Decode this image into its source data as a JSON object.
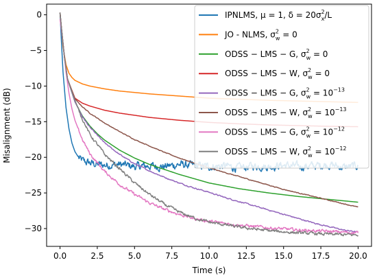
{
  "chart_data": {
    "type": "line",
    "xlabel": "Time (s)",
    "ylabel": "Misalignment (dB)",
    "xlim": [
      -0.9,
      20.9
    ],
    "ylim": [
      -32.5,
      1.5
    ],
    "xticks": [
      0.0,
      2.5,
      5.0,
      7.5,
      10.0,
      12.5,
      15.0,
      17.5,
      20.0
    ],
    "xtick_labels": [
      "0.0",
      "2.5",
      "5.0",
      "7.5",
      "10.0",
      "12.5",
      "15.0",
      "17.5",
      "20.0"
    ],
    "yticks": [
      0,
      -5,
      -10,
      -15,
      -20,
      -25,
      -30
    ],
    "ytick_labels": [
      "0",
      "−5",
      "−10",
      "−15",
      "−20",
      "−25",
      "−30"
    ],
    "grid": false,
    "legend_position": "top-right",
    "series": [
      {
        "name": "IPNLMS, μ = 1, δ = 20σx²/L",
        "legend": {
          "main": "IPNLMS, μ = 1, δ = 20σ",
          "sup": "2",
          "sub": "x",
          "tail": "/L"
        },
        "color": "#1f77b4",
        "noise": 0.55,
        "x": [
          0,
          0.1,
          0.2,
          0.4,
          0.6,
          0.8,
          1.0,
          1.3,
          1.6,
          2.0,
          2.5,
          3.0,
          4.0,
          5.0,
          6.0,
          7.0,
          8.0,
          9.0,
          10.0,
          11.0,
          12.0,
          13.0,
          14.0,
          15.0,
          16.0,
          17.0,
          18.0,
          19.0,
          20.0
        ],
        "y": [
          0.3,
          -4,
          -8,
          -13,
          -16,
          -18,
          -19.2,
          -20.2,
          -20.6,
          -20.8,
          -21.0,
          -21.1,
          -21.0,
          -21.3,
          -21.2,
          -21.3,
          -21.0,
          -21.2,
          -21.3,
          -21.2,
          -21.5,
          -21.2,
          -21.3,
          -21.1,
          -21.3,
          -21.2,
          -21.0,
          -21.4,
          -21.2
        ]
      },
      {
        "name": "JO - NLMS, σw² = 0",
        "legend": {
          "main": "JO - NLMS, σ",
          "sup": "2",
          "sub": "w",
          "tail": " = 0"
        },
        "color": "#ff7f0e",
        "noise": 0,
        "x": [
          0,
          0.1,
          0.2,
          0.4,
          0.6,
          0.8,
          1.0,
          1.5,
          2.0,
          2.5,
          3.0,
          4.0,
          5.0,
          6.0,
          8.0,
          10.0,
          12.0,
          14.0,
          16.0,
          18.0,
          20.0
        ],
        "y": [
          0.3,
          -2,
          -4.5,
          -7,
          -8.2,
          -8.8,
          -9.2,
          -9.7,
          -10.0,
          -10.2,
          -10.4,
          -10.7,
          -10.9,
          -11.1,
          -11.4,
          -11.7,
          -11.85,
          -12.0,
          -12.1,
          -12.2,
          -12.3
        ]
      },
      {
        "name": "ODSS−LMS−G, σw² = 0",
        "legend": {
          "main": "ODSS − LMS − G, σ",
          "sup": "2",
          "sub": "w",
          "tail": " = 0"
        },
        "color": "#2ca02c",
        "noise": 0,
        "x": [
          0,
          0.1,
          0.3,
          0.5,
          1.0,
          1.5,
          2.0,
          2.5,
          3.0,
          4.0,
          5.0,
          6.0,
          7.0,
          8.0,
          9.0,
          10.0,
          12.0,
          14.0,
          16.0,
          18.0,
          20.0
        ],
        "y": [
          0.3,
          -2,
          -6,
          -9,
          -12.2,
          -14.2,
          -15.6,
          -16.7,
          -17.6,
          -19.0,
          -20.1,
          -21.0,
          -21.7,
          -22.4,
          -23.0,
          -23.6,
          -24.4,
          -25.0,
          -25.5,
          -25.9,
          -26.3
        ]
      },
      {
        "name": "ODSS−LMS−W, σw² = 0",
        "legend": {
          "main": "ODSS − LMS − W, σ",
          "sup": "2",
          "sub": "w",
          "tail": " = 0"
        },
        "color": "#d62728",
        "noise": 0,
        "x": [
          0,
          0.1,
          0.3,
          0.5,
          1.0,
          1.5,
          2.0,
          2.5,
          3.0,
          4.0,
          5.0,
          6.0,
          8.0,
          10.0,
          12.0,
          14.0,
          16.0,
          18.0,
          20.0
        ],
        "y": [
          0.3,
          -2,
          -6,
          -9,
          -11.7,
          -12.4,
          -12.8,
          -13.1,
          -13.4,
          -13.8,
          -14.1,
          -14.4,
          -14.8,
          -15.1,
          -15.3,
          -15.45,
          -15.55,
          -15.65,
          -15.7
        ]
      },
      {
        "name": "ODSS−LMS−G, σw² = 10⁻¹³",
        "legend": {
          "main": "ODSS − LMS − G, σ",
          "sup": "2",
          "sub": "w",
          "tail": " = 10",
          "exp": "−13"
        },
        "color": "#9467bd",
        "noise": 0.08,
        "x": [
          0,
          0.1,
          0.3,
          0.5,
          1.0,
          1.5,
          2.0,
          3.0,
          4.0,
          5.0,
          6.0,
          7.0,
          8.0,
          9.0,
          10.0,
          11.0,
          12.0,
          13.0,
          14.0,
          15.0,
          16.0,
          17.0,
          18.0,
          19.0,
          20.0
        ],
        "y": [
          0.3,
          -2,
          -6,
          -9,
          -12.2,
          -14.3,
          -15.8,
          -18.0,
          -19.6,
          -20.9,
          -21.9,
          -22.8,
          -23.6,
          -24.3,
          -24.9,
          -25.6,
          -26.2,
          -26.8,
          -27.4,
          -28.0,
          -28.6,
          -29.2,
          -29.7,
          -30.2,
          -30.5
        ]
      },
      {
        "name": "ODSS−LMS−W, σw² = 10⁻¹³",
        "legend": {
          "main": "ODSS − LMS − W, σ",
          "sup": "2",
          "sub": "w",
          "tail": " = 10",
          "exp": "−13"
        },
        "color": "#8c564b",
        "noise": 0.05,
        "x": [
          0,
          0.1,
          0.3,
          0.5,
          1.0,
          1.5,
          2.0,
          3.0,
          4.0,
          5.0,
          6.0,
          7.0,
          8.0,
          9.0,
          10.0,
          11.0,
          12.0,
          13.0,
          14.0,
          15.0,
          16.0,
          17.0,
          18.0,
          19.0,
          20.0
        ],
        "y": [
          0.3,
          -2,
          -6,
          -9,
          -11.8,
          -12.9,
          -13.8,
          -15.2,
          -16.4,
          -17.5,
          -18.4,
          -19.3,
          -20.1,
          -20.8,
          -21.5,
          -22.1,
          -22.7,
          -23.3,
          -23.9,
          -24.5,
          -25.0,
          -25.5,
          -26.0,
          -26.5,
          -27.0
        ]
      },
      {
        "name": "ODSS−LMS−G, σw² = 10⁻¹²",
        "legend": {
          "main": "ODSS − LMS − G, σ",
          "sup": "2",
          "sub": "w",
          "tail": " = 10",
          "exp": "−12"
        },
        "color": "#e377c2",
        "noise": 0.2,
        "x": [
          0,
          0.2,
          0.4,
          0.6,
          0.8,
          1.0,
          1.5,
          2.0,
          3.0,
          4.0,
          5.0,
          6.0,
          7.0,
          8.0,
          9.0,
          10.0,
          12.0,
          14.0,
          16.0,
          18.0,
          20.0
        ],
        "y": [
          -0.6,
          -4,
          -8,
          -11,
          -13.2,
          -14.8,
          -17.5,
          -19.5,
          -22.0,
          -23.8,
          -25.2,
          -26.4,
          -27.3,
          -28.0,
          -28.6,
          -29.0,
          -29.5,
          -29.9,
          -30.2,
          -30.4,
          -30.6
        ]
      },
      {
        "name": "ODSS−LMS−W, σw² = 10⁻¹²",
        "legend": {
          "main": "ODSS − LMS − W, σ",
          "sup": "2",
          "sub": "w",
          "tail": " = 10",
          "exp": "−12"
        },
        "color": "#7f7f7f",
        "noise": 0.2,
        "x": [
          0,
          0.1,
          0.3,
          0.5,
          1.0,
          1.5,
          2.0,
          3.0,
          4.0,
          5.0,
          6.0,
          7.0,
          8.0,
          9.0,
          10.0,
          12.0,
          14.0,
          16.0,
          18.0,
          20.0
        ],
        "y": [
          0.3,
          -2,
          -6,
          -9,
          -12.0,
          -14.6,
          -16.8,
          -19.6,
          -21.6,
          -23.6,
          -25.2,
          -26.6,
          -27.7,
          -28.5,
          -29.1,
          -29.8,
          -30.3,
          -30.6,
          -30.8,
          -30.9
        ]
      }
    ]
  }
}
